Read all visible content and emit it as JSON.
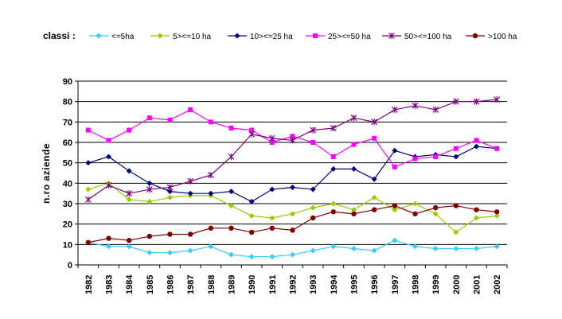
{
  "chart_data": {
    "type": "line",
    "title": "",
    "xlabel": "",
    "ylabel": "n.ro aziende",
    "legend_title": "classi :",
    "legend_position": "top",
    "ylim": [
      0,
      90
    ],
    "yticks": [
      "0",
      "10",
      "20",
      "30",
      "40",
      "50",
      "60",
      "70",
      "80",
      "90"
    ],
    "grid": "horizontal",
    "x": [
      "1982",
      "1983",
      "1984",
      "1985",
      "1986",
      "1987",
      "1988",
      "1989",
      "1990",
      "1991",
      "1992",
      "1993",
      "1994",
      "1995",
      "1996",
      "1997",
      "1998",
      "1999",
      "2000",
      "2001",
      "2002"
    ],
    "series": [
      {
        "name": "<=5ha",
        "color": "#33CCFF",
        "marker": "diamond",
        "values": [
          11,
          9,
          9,
          6,
          6,
          7,
          9,
          5,
          4,
          4,
          5,
          7,
          9,
          8,
          7,
          12,
          9,
          8,
          8,
          8,
          9
        ]
      },
      {
        "name": "5><=10 ha",
        "color": "#99CC00",
        "marker": "diamond",
        "values": [
          37,
          40,
          32,
          31,
          33,
          34,
          34,
          29,
          24,
          23,
          25,
          28,
          30,
          27,
          33,
          27,
          30,
          25,
          16,
          23,
          24
        ]
      },
      {
        "name": "10><=25 ha",
        "color": "#000080",
        "marker": "diamond",
        "values": [
          50,
          53,
          46,
          40,
          36,
          35,
          35,
          36,
          31,
          37,
          38,
          37,
          47,
          47,
          42,
          56,
          53,
          54,
          53,
          58,
          57
        ]
      },
      {
        "name": "25><=50 ha",
        "color": "#FF00FF",
        "marker": "square",
        "values": [
          66,
          61,
          66,
          72,
          71,
          76,
          70,
          67,
          66,
          60,
          63,
          60,
          53,
          59,
          62,
          48,
          52,
          53,
          57,
          61,
          57
        ]
      },
      {
        "name": "50><=100 ha",
        "color": "#800080",
        "marker": "star",
        "values": [
          32,
          39,
          35,
          37,
          38,
          41,
          44,
          53,
          64,
          62,
          61,
          66,
          67,
          72,
          70,
          76,
          78,
          76,
          80,
          80,
          81
        ]
      },
      {
        "name": ">100 ha",
        "color": "#800000",
        "marker": "circle",
        "values": [
          11,
          13,
          12,
          14,
          15,
          15,
          18,
          18,
          16,
          18,
          17,
          23,
          26,
          25,
          27,
          29,
          25,
          28,
          29,
          27,
          26
        ]
      }
    ]
  }
}
